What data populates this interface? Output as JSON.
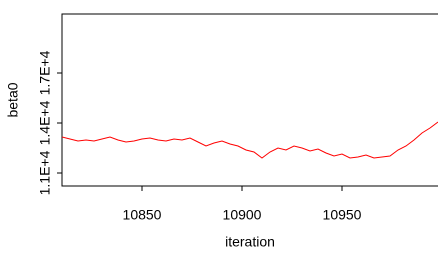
{
  "chart_data": {
    "type": "line",
    "xlabel": "iteration",
    "ylabel": "beta0",
    "x": [
      10810,
      10814,
      10818,
      10822,
      10826,
      10830,
      10834,
      10838,
      10842,
      10846,
      10850,
      10854,
      10858,
      10862,
      10866,
      10870,
      10874,
      10878,
      10882,
      10886,
      10890,
      10894,
      10898,
      10902,
      10906,
      10910,
      10914,
      10918,
      10922,
      10926,
      10930,
      10934,
      10938,
      10942,
      10946,
      10950,
      10954,
      10958,
      10962,
      10966,
      10970,
      10974,
      10978,
      10982,
      10986,
      10990,
      10994,
      10998
    ],
    "series": [
      {
        "name": "beta0",
        "color": "#ff0000",
        "values": [
          13160,
          13040,
          12920,
          12980,
          12920,
          13040,
          13160,
          12980,
          12860,
          12920,
          13040,
          13100,
          12980,
          12920,
          13040,
          12980,
          13100,
          12860,
          12620,
          12800,
          12920,
          12740,
          12620,
          12380,
          12260,
          11900,
          12260,
          12500,
          12380,
          12620,
          12500,
          12320,
          12440,
          12200,
          12020,
          12140,
          11900,
          11960,
          12080,
          11900,
          11960,
          12020,
          12380,
          12620,
          12980,
          13400,
          13700,
          14060
        ]
      }
    ],
    "xlim": [
      10810,
      10998
    ],
    "xticks": [
      10850,
      10900,
      10950
    ],
    "ylim": [
      10220,
      20540
    ],
    "yticks": [
      {
        "value": 11000,
        "label": "1.1E+4"
      },
      {
        "value": 14000,
        "label": "1.4E+4"
      },
      {
        "value": 17000,
        "label": "1.7E+4"
      }
    ]
  }
}
